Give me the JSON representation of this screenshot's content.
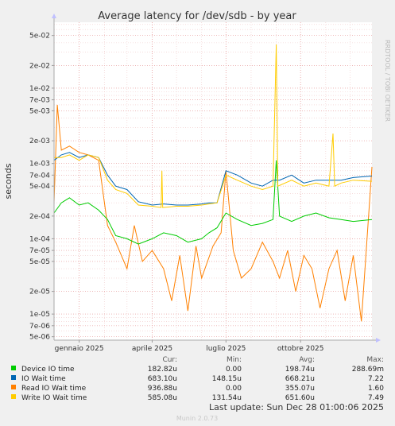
{
  "chart_data": {
    "type": "line",
    "title": "Average latency for /dev/sdb - by year",
    "ylabel": "seconds",
    "xlabel": "",
    "side_text": "RRDTOOL / TOBI OETIKER",
    "y_scale": "log",
    "ylim": [
      4.5e-06,
      0.075
    ],
    "xlim": [
      "2024-12-01",
      "2025-12-28"
    ],
    "grid": true,
    "legend_position": "bottom",
    "y_ticks": [
      {
        "label": "5e-02",
        "value": 0.05
      },
      {
        "label": "2e-02",
        "value": 0.02
      },
      {
        "label": "1e-02",
        "value": 0.01
      },
      {
        "label": "7e-03",
        "value": 0.007
      },
      {
        "label": "5e-03",
        "value": 0.005
      },
      {
        "label": "2e-03",
        "value": 0.002
      },
      {
        "label": "1e-03",
        "value": 0.001
      },
      {
        "label": "7e-04",
        "value": 0.0007
      },
      {
        "label": "5e-04",
        "value": 0.0005
      },
      {
        "label": "2e-04",
        "value": 0.0002
      },
      {
        "label": "1e-04",
        "value": 0.0001
      },
      {
        "label": "7e-05",
        "value": 7e-05
      },
      {
        "label": "5e-05",
        "value": 5e-05
      },
      {
        "label": "2e-05",
        "value": 2e-05
      },
      {
        "label": "1e-05",
        "value": 1e-05
      },
      {
        "label": "7e-06",
        "value": 7e-06
      },
      {
        "label": "5e-06",
        "value": 5e-06
      }
    ],
    "x_ticks": [
      {
        "label": "gennaio 2025",
        "value": "2025-01-01"
      },
      {
        "label": "aprile 2025",
        "value": "2025-04-01"
      },
      {
        "label": "luglio 2025",
        "value": "2025-07-01"
      },
      {
        "label": "ottobre 2025",
        "value": "2025-10-01"
      }
    ],
    "legend_headers": {
      "cur": "Cur:",
      "min": "Min:",
      "avg": "Avg:",
      "max": "Max:"
    },
    "series": [
      {
        "name": "Device IO time",
        "color": "#00cc00",
        "cur": "182.82u",
        "min": "0.00",
        "avg": "198.74u",
        "max": "288.69m",
        "points": [
          [
            "2024-12-01",
            0.00022
          ],
          [
            "2024-12-10",
            0.0003
          ],
          [
            "2024-12-20",
            0.00035
          ],
          [
            "2025-01-01",
            0.00028
          ],
          [
            "2025-01-12",
            0.0003
          ],
          [
            "2025-01-25",
            0.00024
          ],
          [
            "2025-02-05",
            0.00018
          ],
          [
            "2025-02-15",
            0.00011
          ],
          [
            "2025-03-01",
            0.0001
          ],
          [
            "2025-03-15",
            8.5e-05
          ],
          [
            "2025-04-01",
            0.0001
          ],
          [
            "2025-04-15",
            0.00012
          ],
          [
            "2025-05-01",
            0.00011
          ],
          [
            "2025-05-15",
            9e-05
          ],
          [
            "2025-06-01",
            0.0001
          ],
          [
            "2025-06-10",
            0.00012
          ],
          [
            "2025-06-20",
            0.00014
          ],
          [
            "2025-07-01",
            0.00022
          ],
          [
            "2025-07-15",
            0.00018
          ],
          [
            "2025-08-01",
            0.00015
          ],
          [
            "2025-08-15",
            0.00016
          ],
          [
            "2025-08-28",
            0.00018
          ],
          [
            "2025-09-01",
            0.0011
          ],
          [
            "2025-09-05",
            0.0002
          ],
          [
            "2025-09-20",
            0.00017
          ],
          [
            "2025-10-05",
            0.0002
          ],
          [
            "2025-10-20",
            0.00022
          ],
          [
            "2025-11-05",
            0.00019
          ],
          [
            "2025-11-20",
            0.00018
          ],
          [
            "2025-12-05",
            0.00017
          ],
          [
            "2025-12-28",
            0.00018
          ]
        ]
      },
      {
        "name": "IO Wait time",
        "color": "#0066b3",
        "cur": "683.10u",
        "min": "148.15u",
        "avg": "668.21u",
        "max": "7.22",
        "points": [
          [
            "2024-12-01",
            0.0011
          ],
          [
            "2024-12-10",
            0.0013
          ],
          [
            "2024-12-20",
            0.0014
          ],
          [
            "2025-01-01",
            0.0012
          ],
          [
            "2025-01-12",
            0.0013
          ],
          [
            "2025-01-25",
            0.0012
          ],
          [
            "2025-02-05",
            0.0007
          ],
          [
            "2025-02-15",
            0.0005
          ],
          [
            "2025-03-01",
            0.00045
          ],
          [
            "2025-03-15",
            0.00031
          ],
          [
            "2025-04-01",
            0.00028
          ],
          [
            "2025-04-15",
            0.00029
          ],
          [
            "2025-05-01",
            0.00028
          ],
          [
            "2025-05-15",
            0.00028
          ],
          [
            "2025-06-01",
            0.00029
          ],
          [
            "2025-06-10",
            0.0003
          ],
          [
            "2025-06-20",
            0.0003
          ],
          [
            "2025-07-01",
            0.0008
          ],
          [
            "2025-07-15",
            0.0007
          ],
          [
            "2025-08-01",
            0.00055
          ],
          [
            "2025-08-15",
            0.0005
          ],
          [
            "2025-08-28",
            0.0006
          ],
          [
            "2025-09-05",
            0.0006
          ],
          [
            "2025-09-20",
            0.0007
          ],
          [
            "2025-10-05",
            0.00055
          ],
          [
            "2025-10-20",
            0.0006
          ],
          [
            "2025-11-05",
            0.0006
          ],
          [
            "2025-11-20",
            0.0006
          ],
          [
            "2025-12-05",
            0.00065
          ],
          [
            "2025-12-28",
            0.00068
          ]
        ]
      },
      {
        "name": "Read IO Wait time",
        "color": "#ff8000",
        "cur": "936.88u",
        "min": "0.00",
        "avg": "355.07u",
        "max": "1.60",
        "points": [
          [
            "2024-12-01",
            0.0003
          ],
          [
            "2024-12-05",
            0.006
          ],
          [
            "2024-12-10",
            0.0015
          ],
          [
            "2024-12-20",
            0.0017
          ],
          [
            "2025-01-01",
            0.0014
          ],
          [
            "2025-01-12",
            0.0013
          ],
          [
            "2025-01-25",
            0.0011
          ],
          [
            "2025-02-05",
            0.00015
          ],
          [
            "2025-02-15",
            9e-05
          ],
          [
            "2025-03-01",
            4e-05
          ],
          [
            "2025-03-10",
            0.00015
          ],
          [
            "2025-03-20",
            5e-05
          ],
          [
            "2025-04-01",
            7e-05
          ],
          [
            "2025-04-15",
            4e-05
          ],
          [
            "2025-04-25",
            1.5e-05
          ],
          [
            "2025-05-05",
            6e-05
          ],
          [
            "2025-05-15",
            1.1e-05
          ],
          [
            "2025-05-25",
            8e-05
          ],
          [
            "2025-06-01",
            3e-05
          ],
          [
            "2025-06-15",
            8e-05
          ],
          [
            "2025-06-25",
            0.00012
          ],
          [
            "2025-07-01",
            0.0008
          ],
          [
            "2025-07-10",
            7e-05
          ],
          [
            "2025-07-20",
            3e-05
          ],
          [
            "2025-08-01",
            4e-05
          ],
          [
            "2025-08-15",
            9e-05
          ],
          [
            "2025-08-28",
            5e-05
          ],
          [
            "2025-09-05",
            3e-05
          ],
          [
            "2025-09-15",
            7e-05
          ],
          [
            "2025-09-25",
            2e-05
          ],
          [
            "2025-10-05",
            6e-05
          ],
          [
            "2025-10-15",
            4e-05
          ],
          [
            "2025-10-25",
            1.2e-05
          ],
          [
            "2025-11-05",
            4e-05
          ],
          [
            "2025-11-15",
            7e-05
          ],
          [
            "2025-11-25",
            1.5e-05
          ],
          [
            "2025-12-05",
            6e-05
          ],
          [
            "2025-12-15",
            8e-06
          ],
          [
            "2025-12-28",
            0.0009
          ]
        ]
      },
      {
        "name": "Write IO Wait time",
        "color": "#ffcc00",
        "cur": "585.08u",
        "min": "131.54u",
        "avg": "651.60u",
        "max": "7.49",
        "points": [
          [
            "2024-12-01",
            0.0012
          ],
          [
            "2024-12-10",
            0.0012
          ],
          [
            "2024-12-20",
            0.0013
          ],
          [
            "2025-01-01",
            0.0011
          ],
          [
            "2025-01-12",
            0.0013
          ],
          [
            "2025-01-25",
            0.0012
          ],
          [
            "2025-02-05",
            0.0006
          ],
          [
            "2025-02-15",
            0.00045
          ],
          [
            "2025-03-01",
            0.0004
          ],
          [
            "2025-03-15",
            0.00028
          ],
          [
            "2025-04-01",
            0.00027
          ],
          [
            "2025-04-12",
            0.00026
          ],
          [
            "2025-04-13",
            0.0008
          ],
          [
            "2025-04-14",
            0.00026
          ],
          [
            "2025-05-01",
            0.00027
          ],
          [
            "2025-05-15",
            0.00027
          ],
          [
            "2025-06-01",
            0.00028
          ],
          [
            "2025-06-10",
            0.00029
          ],
          [
            "2025-06-20",
            0.0003
          ],
          [
            "2025-07-01",
            0.0007
          ],
          [
            "2025-07-15",
            0.0006
          ],
          [
            "2025-08-01",
            0.0005
          ],
          [
            "2025-08-15",
            0.00045
          ],
          [
            "2025-08-28",
            0.0005
          ],
          [
            "2025-09-01",
            0.038
          ],
          [
            "2025-09-03",
            0.0005
          ],
          [
            "2025-09-20",
            0.0006
          ],
          [
            "2025-10-05",
            0.0005
          ],
          [
            "2025-10-20",
            0.00055
          ],
          [
            "2025-11-05",
            0.0005
          ],
          [
            "2025-11-10",
            0.0025
          ],
          [
            "2025-11-12",
            0.0005
          ],
          [
            "2025-11-20",
            0.00055
          ],
          [
            "2025-12-05",
            0.0006
          ],
          [
            "2025-12-28",
            0.00058
          ]
        ]
      }
    ],
    "footer_update": "Last update: Sun Dec 28 01:00:06 2025",
    "footer_version": "Munin 2.0.73"
  }
}
